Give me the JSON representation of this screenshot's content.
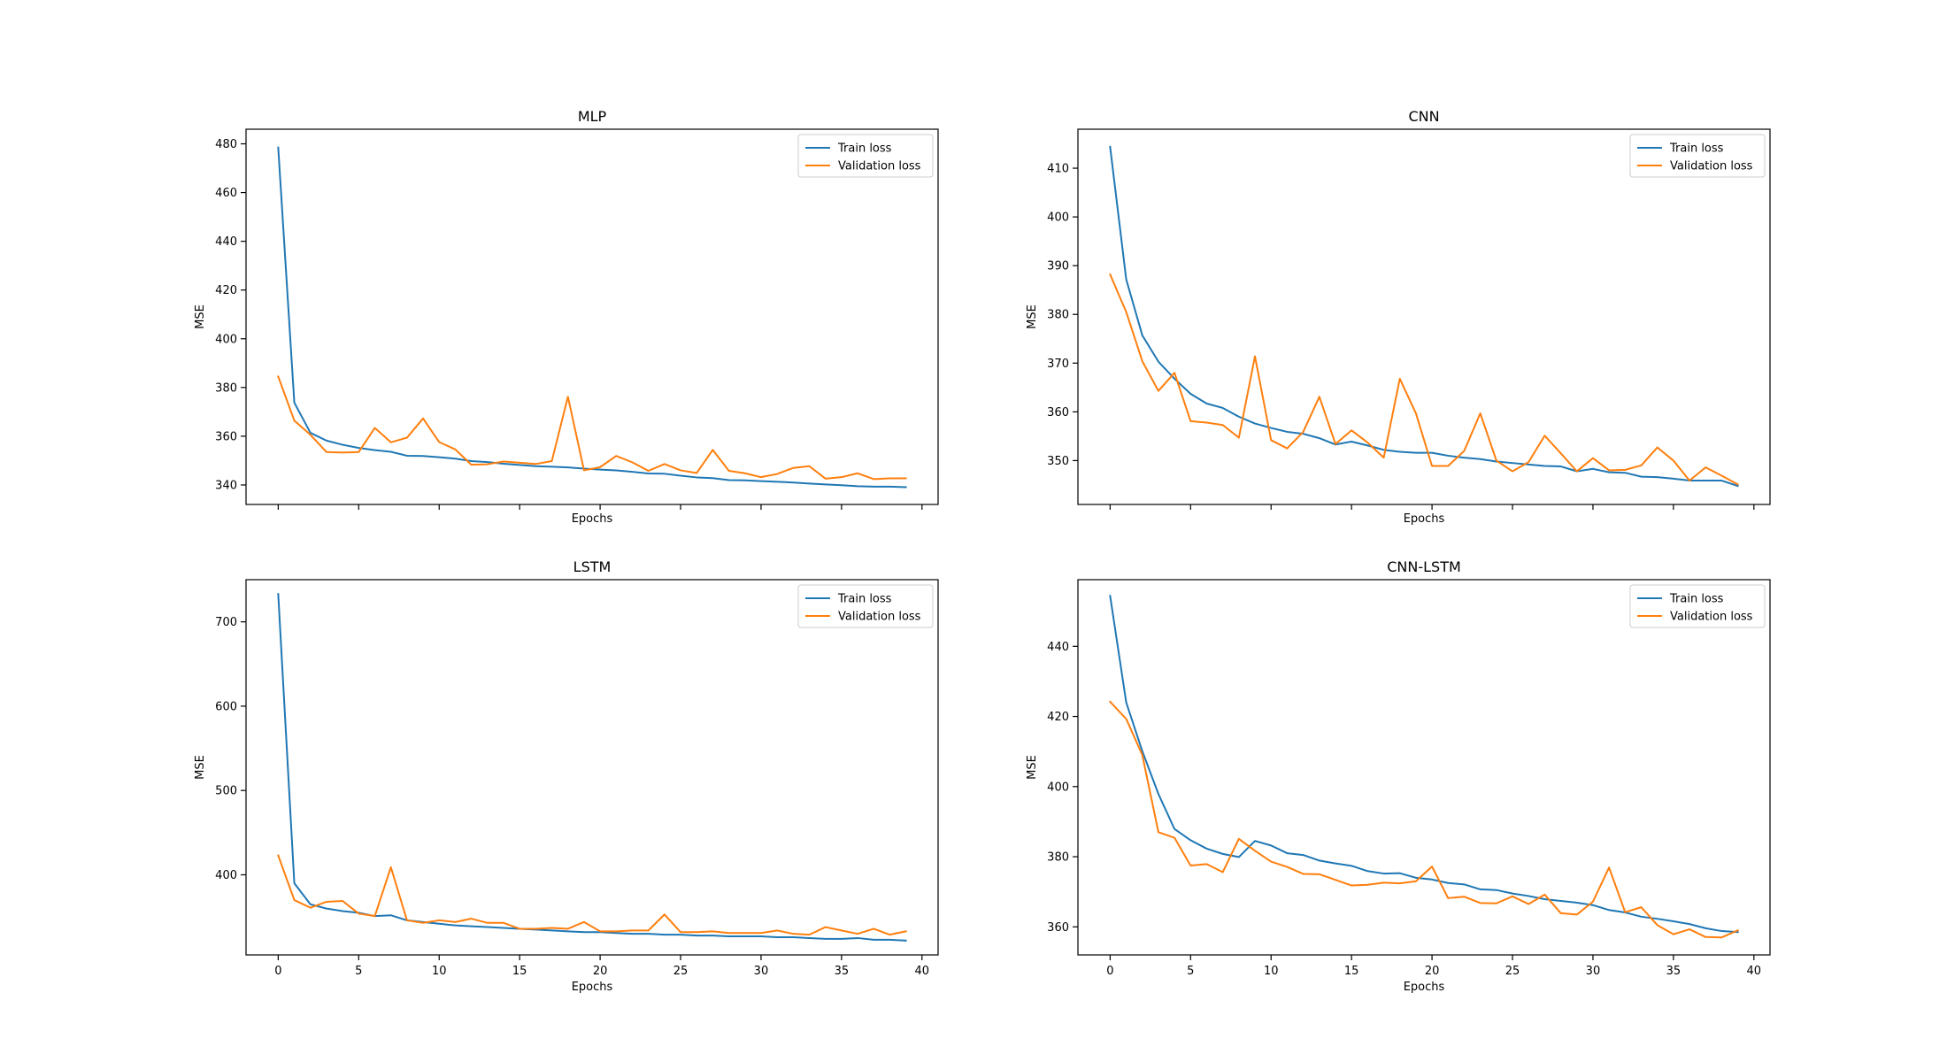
{
  "figure": {
    "colors": {
      "train": "#1f77b4",
      "validation": "#ff7f0e",
      "axes": "#000000",
      "legend_border": "#cccccc"
    }
  },
  "chart_data": [
    {
      "type": "line",
      "title": "MLP",
      "xlabel": "Epochs",
      "ylabel": "MSE",
      "x": [
        0,
        1,
        2,
        3,
        4,
        5,
        6,
        7,
        8,
        9,
        10,
        11,
        12,
        13,
        14,
        15,
        16,
        17,
        18,
        19,
        20,
        21,
        22,
        23,
        24,
        25,
        26,
        27,
        28,
        29,
        30,
        31,
        32,
        33,
        34,
        35,
        36,
        37,
        38,
        39
      ],
      "xlim": [
        -2,
        41
      ],
      "ylim": [
        332,
        486
      ],
      "xticks": [
        0,
        5,
        10,
        15,
        20,
        25,
        30,
        35,
        40
      ],
      "show_xtick_labels": false,
      "yticks": [
        340,
        360,
        380,
        400,
        420,
        440,
        460,
        480
      ],
      "legend": {
        "position": "upper right",
        "entries": [
          "Train loss",
          "Validation loss"
        ]
      },
      "grid": false,
      "series": [
        {
          "name": "Train loss",
          "color": "#1f77b4",
          "values": [
            478.5,
            373.8,
            361.4,
            358.2,
            356.5,
            355.2,
            354.3,
            353.6,
            352.0,
            351.9,
            351.4,
            350.8,
            349.8,
            349.4,
            348.7,
            348.2,
            347.7,
            347.5,
            347.2,
            346.7,
            346.3,
            346.0,
            345.4,
            344.7,
            344.6,
            343.8,
            343.1,
            342.8,
            342.0,
            341.9,
            341.6,
            341.3,
            341.0,
            340.6,
            340.2,
            339.9,
            339.5,
            339.3,
            339.3,
            339.1
          ]
        },
        {
          "name": "Validation loss",
          "color": "#ff7f0e",
          "values": [
            384.5,
            366.4,
            360.6,
            353.5,
            353.3,
            353.5,
            363.4,
            357.5,
            359.4,
            367.3,
            357.6,
            354.6,
            348.3,
            348.5,
            349.6,
            349.1,
            348.6,
            349.8,
            376.2,
            346.0,
            347.3,
            351.9,
            349.3,
            345.8,
            348.6,
            346.0,
            344.9,
            354.4,
            345.8,
            344.8,
            343.2,
            344.5,
            347.0,
            347.7,
            342.6,
            343.2,
            344.8,
            342.4,
            342.7,
            342.7
          ]
        }
      ]
    },
    {
      "type": "line",
      "title": "CNN",
      "xlabel": "Epochs",
      "ylabel": "MSE",
      "x": [
        0,
        1,
        2,
        3,
        4,
        5,
        6,
        7,
        8,
        9,
        10,
        11,
        12,
        13,
        14,
        15,
        16,
        17,
        18,
        19,
        20,
        21,
        22,
        23,
        24,
        25,
        26,
        27,
        28,
        29,
        30,
        31,
        32,
        33,
        34,
        35,
        36,
        37,
        38,
        39
      ],
      "xlim": [
        -2,
        41
      ],
      "ylim": [
        341,
        418
      ],
      "xticks": [
        0,
        5,
        10,
        15,
        20,
        25,
        30,
        35,
        40
      ],
      "show_xtick_labels": false,
      "yticks": [
        350,
        360,
        370,
        380,
        390,
        400,
        410
      ],
      "legend": {
        "position": "upper right",
        "entries": [
          "Train loss",
          "Validation loss"
        ]
      },
      "grid": false,
      "series": [
        {
          "name": "Train loss",
          "color": "#1f77b4",
          "values": [
            414.4,
            387.2,
            375.7,
            370.3,
            366.8,
            363.7,
            361.7,
            360.8,
            359.0,
            357.6,
            356.7,
            355.9,
            355.5,
            354.6,
            353.3,
            353.9,
            353.1,
            352.2,
            351.8,
            351.6,
            351.6,
            351.0,
            350.6,
            350.3,
            349.8,
            349.5,
            349.2,
            348.9,
            348.8,
            347.8,
            348.3,
            347.6,
            347.5,
            346.7,
            346.6,
            346.3,
            345.9,
            345.9,
            345.9,
            344.8
          ]
        },
        {
          "name": "Validation loss",
          "color": "#ff7f0e",
          "values": [
            388.2,
            380.5,
            370.4,
            364.3,
            368.0,
            358.1,
            357.8,
            357.3,
            354.7,
            371.4,
            354.2,
            352.5,
            355.9,
            363.1,
            353.4,
            356.2,
            353.7,
            350.6,
            366.8,
            359.7,
            348.9,
            348.9,
            352.0,
            359.7,
            350.0,
            347.8,
            349.7,
            355.1,
            351.5,
            347.8,
            350.5,
            348.0,
            348.1,
            349.0,
            352.7,
            350.0,
            345.9,
            348.6,
            346.9,
            345.1
          ]
        }
      ]
    },
    {
      "type": "line",
      "title": "LSTM",
      "xlabel": "Epochs",
      "ylabel": "MSE",
      "x": [
        0,
        1,
        2,
        3,
        4,
        5,
        6,
        7,
        8,
        9,
        10,
        11,
        12,
        13,
        14,
        15,
        16,
        17,
        18,
        19,
        20,
        21,
        22,
        23,
        24,
        25,
        26,
        27,
        28,
        29,
        30,
        31,
        32,
        33,
        34,
        35,
        36,
        37,
        38,
        39
      ],
      "xlim": [
        -2,
        41
      ],
      "ylim": [
        305,
        750
      ],
      "xticks": [
        0,
        5,
        10,
        15,
        20,
        25,
        30,
        35,
        40
      ],
      "show_xtick_labels": true,
      "yticks": [
        400,
        500,
        600,
        700
      ],
      "legend": {
        "position": "upper right",
        "entries": [
          "Train loss",
          "Validation loss"
        ]
      },
      "grid": false,
      "series": [
        {
          "name": "Train loss",
          "color": "#1f77b4",
          "values": [
            733,
            390,
            365,
            360,
            357,
            355,
            351,
            352,
            346,
            344,
            342,
            340,
            339,
            338,
            337,
            336,
            335,
            334,
            333,
            332,
            332,
            331,
            330,
            330,
            329,
            329,
            328,
            328,
            327,
            327,
            327,
            326,
            326,
            325,
            324,
            324,
            325,
            323,
            323,
            322
          ]
        },
        {
          "name": "Validation loss",
          "color": "#ff7f0e",
          "values": [
            423,
            370,
            361,
            368,
            369,
            354,
            351,
            409,
            346,
            343,
            346,
            344,
            348,
            343,
            343,
            336,
            336,
            337,
            336,
            344,
            333,
            333,
            334,
            334,
            353,
            332,
            332,
            333,
            331,
            331,
            331,
            334,
            330,
            329,
            338,
            334,
            330,
            336,
            329,
            333
          ]
        }
      ]
    },
    {
      "type": "line",
      "title": "CNN-LSTM",
      "xlabel": "Epochs",
      "ylabel": "MSE",
      "x": [
        0,
        1,
        2,
        3,
        4,
        5,
        6,
        7,
        8,
        9,
        10,
        11,
        12,
        13,
        14,
        15,
        16,
        17,
        18,
        19,
        20,
        21,
        22,
        23,
        24,
        25,
        26,
        27,
        28,
        29,
        30,
        31,
        32,
        33,
        34,
        35,
        36,
        37,
        38,
        39
      ],
      "xlim": [
        -2,
        41
      ],
      "ylim": [
        352,
        459
      ],
      "xticks": [
        0,
        5,
        10,
        15,
        20,
        25,
        30,
        35,
        40
      ],
      "show_xtick_labels": true,
      "yticks": [
        360,
        380,
        400,
        420,
        440
      ],
      "legend": {
        "position": "upper right",
        "entries": [
          "Train loss",
          "Validation loss"
        ]
      },
      "grid": false,
      "series": [
        {
          "name": "Train loss",
          "color": "#1f77b4",
          "values": [
            454.4,
            424.0,
            410.1,
            397.9,
            387.9,
            384.7,
            382.3,
            380.8,
            379.9,
            384.5,
            383.2,
            381.0,
            380.5,
            378.9,
            378.1,
            377.4,
            375.9,
            375.2,
            375.3,
            374.0,
            373.5,
            372.5,
            372.1,
            370.7,
            370.5,
            369.5,
            368.8,
            367.9,
            367.4,
            366.9,
            366.2,
            364.8,
            364.1,
            362.9,
            362.3,
            361.6,
            360.8,
            359.6,
            358.8,
            358.5
          ]
        },
        {
          "name": "Validation loss",
          "color": "#ff7f0e",
          "values": [
            424.2,
            419.3,
            409.0,
            387.0,
            385.4,
            377.5,
            377.9,
            375.6,
            385.1,
            381.7,
            378.6,
            377.1,
            375.1,
            375.0,
            373.4,
            371.8,
            372.0,
            372.6,
            372.4,
            373.0,
            377.2,
            368.2,
            368.6,
            366.8,
            366.7,
            368.7,
            366.5,
            369.2,
            363.9,
            363.5,
            367.2,
            376.9,
            364.2,
            365.6,
            360.5,
            357.9,
            359.3,
            357.1,
            357.0,
            359.0
          ]
        }
      ]
    }
  ]
}
